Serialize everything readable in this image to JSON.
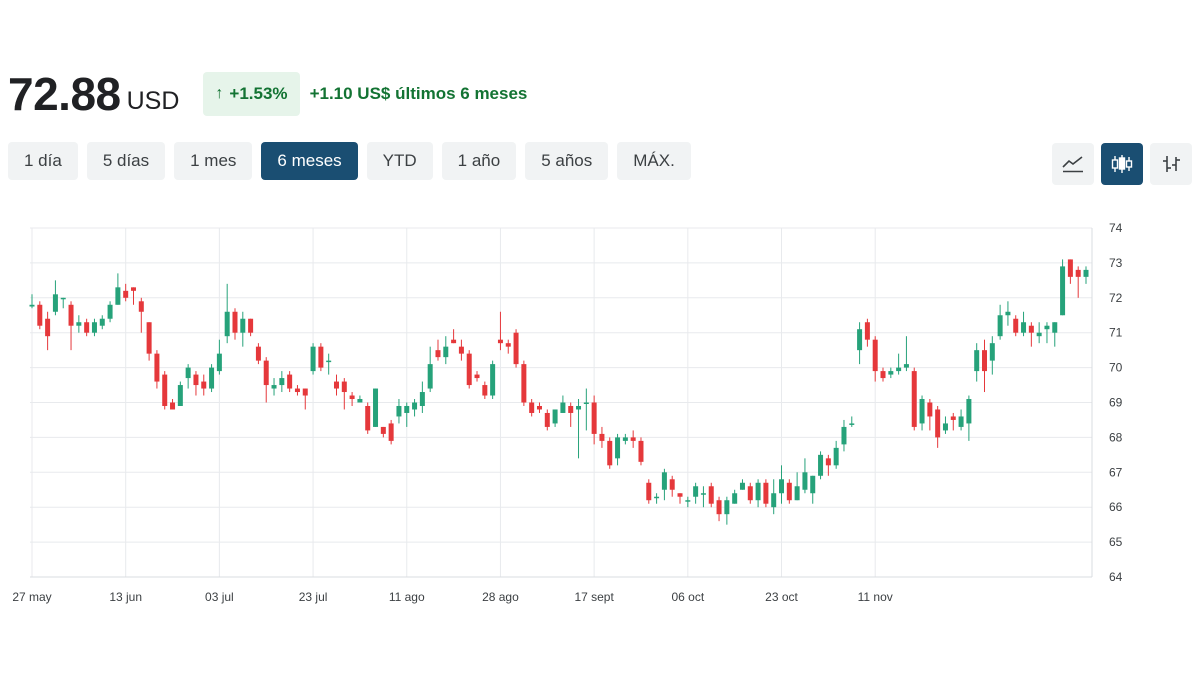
{
  "quote": {
    "price": "72.88",
    "currency": "USD",
    "change_arrow": "↑",
    "change_percent": "+1.53%",
    "change_text": "+1.10 US$ últimos 6 meses"
  },
  "ranges": [
    {
      "label": "1 día",
      "active": false
    },
    {
      "label": "5 días",
      "active": false
    },
    {
      "label": "1 mes",
      "active": false
    },
    {
      "label": "6 meses",
      "active": true
    },
    {
      "label": "YTD",
      "active": false
    },
    {
      "label": "1 año",
      "active": false
    },
    {
      "label": "5 años",
      "active": false
    },
    {
      "label": "MÁX.",
      "active": false
    }
  ],
  "chart_types": [
    {
      "icon": "line-chart-icon",
      "active": false
    },
    {
      "icon": "candlestick-chart-icon",
      "active": true
    },
    {
      "icon": "ohlc-chart-icon",
      "active": false
    }
  ],
  "colors": {
    "up": "#26a27a",
    "down": "#e5383b",
    "accent": "#1a4e72"
  },
  "chart_data": {
    "type": "candlestick",
    "title": "",
    "xlabel": "",
    "ylabel": "",
    "ylim": [
      64,
      74
    ],
    "yticks": [
      64,
      65,
      66,
      67,
      68,
      69,
      70,
      71,
      72,
      73,
      74
    ],
    "xticks": [
      {
        "label": "27 may",
        "index": 0
      },
      {
        "label": "13 jun",
        "index": 12
      },
      {
        "label": "03 jul",
        "index": 24
      },
      {
        "label": "23 jul",
        "index": 36
      },
      {
        "label": "11 ago",
        "index": 48
      },
      {
        "label": "28 ago",
        "index": 60
      },
      {
        "label": "17 sept",
        "index": 72
      },
      {
        "label": "06 oct",
        "index": 84
      },
      {
        "label": "23 oct",
        "index": 96
      },
      {
        "label": "11 nov",
        "index": 108
      }
    ],
    "grid": true,
    "candles": [
      [
        71.75,
        71.8,
        72.1,
        71.7
      ],
      [
        71.8,
        71.2,
        71.9,
        71.1
      ],
      [
        71.4,
        70.9,
        71.6,
        70.5
      ],
      [
        71.6,
        72.1,
        72.5,
        71.5
      ],
      [
        72.0,
        72.0,
        72.0,
        71.7
      ],
      [
        71.8,
        71.2,
        71.9,
        70.5
      ],
      [
        71.2,
        71.3,
        71.5,
        71.0
      ],
      [
        71.3,
        71.0,
        71.4,
        70.9
      ],
      [
        71.0,
        71.3,
        71.4,
        70.9
      ],
      [
        71.2,
        71.4,
        71.5,
        71.1
      ],
      [
        71.4,
        71.8,
        71.9,
        71.3
      ],
      [
        71.8,
        72.3,
        72.7,
        71.8
      ],
      [
        72.2,
        72.0,
        72.4,
        71.9
      ],
      [
        72.3,
        72.2,
        72.3,
        71.8
      ],
      [
        71.9,
        71.6,
        72.0,
        71.0
      ],
      [
        71.3,
        70.4,
        71.3,
        70.2
      ],
      [
        70.4,
        69.6,
        70.5,
        69.4
      ],
      [
        69.8,
        68.9,
        69.9,
        68.8
      ],
      [
        69.0,
        68.8,
        69.1,
        68.8
      ],
      [
        68.9,
        69.5,
        69.6,
        68.9
      ],
      [
        69.7,
        70.0,
        70.1,
        69.4
      ],
      [
        69.8,
        69.5,
        69.9,
        69.2
      ],
      [
        69.6,
        69.4,
        69.8,
        69.2
      ],
      [
        69.4,
        70.0,
        70.1,
        69.3
      ],
      [
        69.9,
        70.4,
        70.8,
        69.8
      ],
      [
        70.9,
        71.6,
        72.4,
        70.7
      ],
      [
        71.6,
        71.0,
        71.7,
        70.8
      ],
      [
        71.0,
        71.4,
        71.6,
        70.6
      ],
      [
        71.4,
        71.0,
        71.4,
        70.9
      ],
      [
        70.6,
        70.2,
        70.7,
        70.1
      ],
      [
        70.2,
        69.5,
        70.3,
        69.0
      ],
      [
        69.4,
        69.5,
        69.7,
        69.2
      ],
      [
        69.5,
        69.7,
        69.9,
        69.3
      ],
      [
        69.8,
        69.4,
        69.9,
        69.3
      ],
      [
        69.4,
        69.3,
        69.5,
        69.2
      ],
      [
        69.4,
        69.2,
        69.4,
        68.8
      ],
      [
        69.9,
        70.6,
        70.7,
        69.8
      ],
      [
        70.6,
        70.0,
        70.7,
        69.9
      ],
      [
        70.2,
        70.2,
        70.4,
        69.8
      ],
      [
        69.6,
        69.4,
        69.8,
        69.2
      ],
      [
        69.6,
        69.3,
        69.7,
        68.8
      ],
      [
        69.2,
        69.1,
        69.3,
        68.9
      ],
      [
        69.0,
        69.1,
        69.2,
        69.0
      ],
      [
        68.9,
        68.2,
        69.0,
        68.1
      ],
      [
        68.3,
        69.4,
        69.4,
        68.3
      ],
      [
        68.3,
        68.1,
        68.3,
        68.0
      ],
      [
        68.4,
        67.9,
        68.5,
        67.8
      ],
      [
        68.6,
        68.9,
        69.1,
        68.4
      ],
      [
        68.7,
        68.9,
        69.0,
        68.3
      ],
      [
        68.8,
        69.0,
        69.1,
        68.6
      ],
      [
        68.9,
        69.3,
        69.6,
        68.7
      ],
      [
        69.4,
        70.1,
        70.6,
        69.3
      ],
      [
        70.5,
        70.3,
        70.8,
        70.2
      ],
      [
        70.3,
        70.6,
        70.9,
        70.1
      ],
      [
        70.8,
        70.7,
        71.1,
        70.7
      ],
      [
        70.6,
        70.4,
        70.8,
        70.2
      ],
      [
        70.4,
        69.5,
        70.5,
        69.4
      ],
      [
        69.8,
        69.7,
        69.9,
        69.6
      ],
      [
        69.5,
        69.2,
        69.6,
        69.1
      ],
      [
        69.2,
        70.1,
        70.2,
        69.1
      ],
      [
        70.8,
        70.7,
        71.6,
        70.5
      ],
      [
        70.7,
        70.6,
        70.8,
        70.4
      ],
      [
        71.0,
        70.1,
        71.1,
        70.0
      ],
      [
        70.1,
        69.0,
        70.2,
        68.9
      ],
      [
        69.0,
        68.7,
        69.1,
        68.6
      ],
      [
        68.9,
        68.8,
        69.0,
        68.7
      ],
      [
        68.7,
        68.3,
        68.8,
        68.2
      ],
      [
        68.4,
        68.8,
        68.8,
        68.3
      ],
      [
        68.7,
        69.0,
        69.2,
        68.7
      ],
      [
        68.9,
        68.7,
        69.0,
        68.3
      ],
      [
        68.8,
        68.9,
        69.1,
        67.4
      ],
      [
        69.0,
        69.0,
        69.4,
        68.2
      ],
      [
        69.0,
        68.1,
        69.2,
        67.8
      ],
      [
        68.1,
        67.9,
        68.3,
        67.7
      ],
      [
        67.9,
        67.2,
        68.0,
        67.1
      ],
      [
        67.4,
        68.0,
        68.1,
        67.2
      ],
      [
        67.9,
        68.0,
        68.1,
        67.8
      ],
      [
        68.0,
        67.9,
        68.2,
        67.7
      ],
      [
        67.9,
        67.3,
        68.0,
        67.2
      ],
      [
        66.7,
        66.2,
        66.8,
        66.1
      ],
      [
        66.3,
        66.3,
        66.4,
        66.1
      ],
      [
        66.5,
        67.0,
        67.1,
        66.2
      ],
      [
        66.8,
        66.5,
        66.9,
        66.3
      ],
      [
        66.4,
        66.3,
        66.4,
        66.1
      ],
      [
        66.2,
        66.2,
        66.3,
        66.0
      ],
      [
        66.3,
        66.6,
        66.7,
        66.1
      ],
      [
        66.4,
        66.4,
        66.6,
        66.0
      ],
      [
        66.6,
        66.1,
        66.7,
        66.0
      ],
      [
        66.2,
        65.8,
        66.3,
        65.6
      ],
      [
        65.8,
        66.2,
        66.3,
        65.5
      ],
      [
        66.1,
        66.4,
        66.5,
        66.1
      ],
      [
        66.5,
        66.7,
        66.8,
        66.5
      ],
      [
        66.6,
        66.2,
        66.7,
        66.1
      ],
      [
        66.2,
        66.7,
        66.8,
        66.0
      ],
      [
        66.7,
        66.1,
        66.8,
        66.0
      ],
      [
        66.0,
        66.4,
        66.8,
        65.8
      ],
      [
        66.4,
        66.8,
        67.2,
        66.1
      ],
      [
        66.7,
        66.2,
        66.8,
        66.1
      ],
      [
        66.2,
        66.6,
        67.0,
        66.2
      ],
      [
        66.5,
        67.0,
        67.4,
        66.4
      ],
      [
        66.4,
        66.9,
        66.9,
        66.1
      ],
      [
        66.9,
        67.5,
        67.6,
        66.8
      ],
      [
        67.4,
        67.2,
        67.5,
        66.9
      ],
      [
        67.2,
        67.7,
        67.9,
        67.1
      ],
      [
        67.8,
        68.3,
        68.5,
        67.6
      ],
      [
        68.4,
        68.4,
        68.6,
        68.3
      ],
      [
        70.5,
        71.1,
        71.3,
        70.1
      ],
      [
        71.3,
        70.8,
        71.4,
        70.6
      ],
      [
        70.8,
        69.9,
        70.9,
        69.6
      ],
      [
        69.9,
        69.7,
        70.0,
        69.6
      ],
      [
        69.8,
        69.9,
        70.0,
        69.7
      ],
      [
        69.9,
        70.0,
        70.4,
        69.8
      ],
      [
        70.0,
        70.1,
        70.9,
        69.9
      ],
      [
        69.9,
        68.3,
        70.0,
        68.2
      ],
      [
        68.4,
        69.1,
        69.2,
        68.2
      ],
      [
        69.0,
        68.6,
        69.1,
        68.2
      ],
      [
        68.8,
        68.0,
        68.9,
        67.7
      ],
      [
        68.2,
        68.4,
        68.6,
        68.1
      ],
      [
        68.6,
        68.5,
        68.7,
        68.2
      ],
      [
        68.3,
        68.6,
        68.8,
        68.2
      ],
      [
        68.4,
        69.1,
        69.2,
        67.9
      ],
      [
        69.9,
        70.5,
        70.7,
        69.6
      ],
      [
        70.5,
        69.9,
        70.8,
        69.3
      ],
      [
        70.2,
        70.7,
        70.9,
        69.8
      ],
      [
        70.9,
        71.5,
        71.8,
        70.8
      ],
      [
        71.5,
        71.6,
        71.9,
        71.2
      ],
      [
        71.4,
        71.0,
        71.5,
        70.9
      ],
      [
        71.0,
        71.3,
        71.6,
        70.9
      ],
      [
        71.2,
        71.0,
        71.3,
        70.6
      ],
      [
        70.9,
        71.0,
        71.3,
        70.7
      ],
      [
        71.1,
        71.2,
        71.3,
        70.7
      ],
      [
        71.0,
        71.3,
        71.3,
        70.6
      ],
      [
        71.5,
        72.9,
        73.1,
        71.5
      ],
      [
        73.1,
        72.6,
        73.1,
        72.4
      ],
      [
        72.8,
        72.6,
        72.9,
        72.0
      ],
      [
        72.6,
        72.8,
        72.9,
        72.4
      ]
    ]
  }
}
